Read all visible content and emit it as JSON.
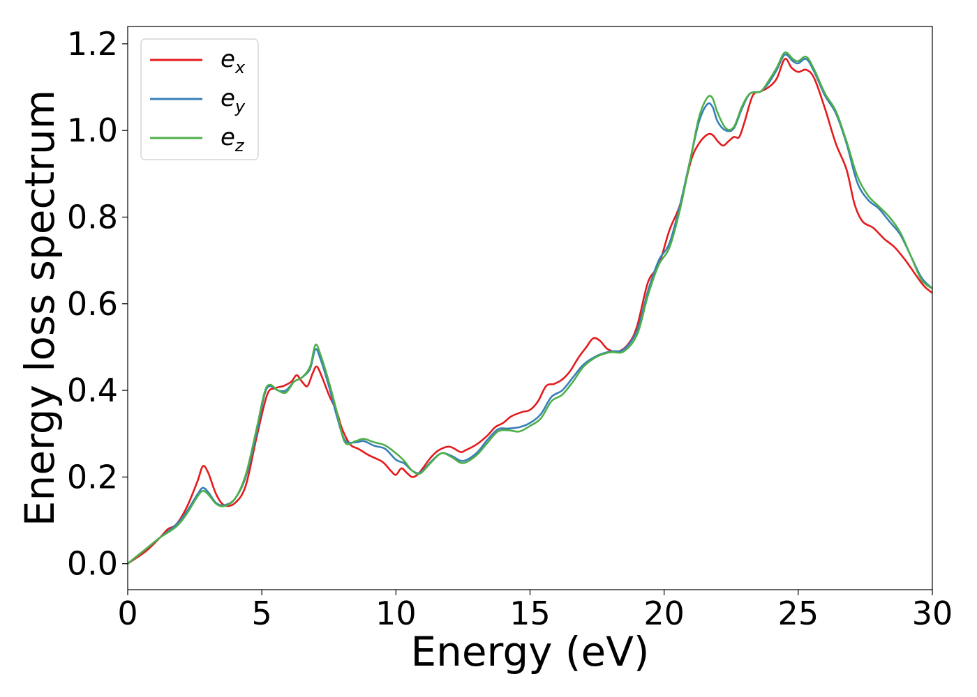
{
  "chart_data": {
    "type": "line",
    "xlabel": "Energy (eV)",
    "ylabel": "Energy loss spectrum",
    "xlim": [
      0,
      30
    ],
    "ylim": [
      -0.06,
      1.24
    ],
    "xticks": [
      "0",
      "5",
      "10",
      "15",
      "20",
      "25",
      "30"
    ],
    "yticks": [
      "0.0",
      "0.2",
      "0.4",
      "0.6",
      "0.8",
      "1.0",
      "1.2"
    ],
    "grid": false,
    "legend_position": "upper-left",
    "series": [
      {
        "name": "e_x",
        "legend_base": "e",
        "legend_sub": "x",
        "color": "#e41a1c",
        "x": [
          0,
          0.7,
          1.2,
          1.5,
          1.8,
          2.2,
          2.6,
          2.8,
          3.0,
          3.3,
          3.6,
          4.0,
          4.4,
          4.8,
          5.2,
          5.5,
          5.8,
          6.1,
          6.3,
          6.5,
          6.7,
          6.9,
          7.05,
          7.25,
          7.5,
          7.8,
          8.0,
          8.3,
          8.6,
          9.0,
          9.5,
          9.8,
          10.0,
          10.2,
          10.4,
          10.6,
          10.8,
          11.0,
          11.3,
          11.6,
          12.0,
          12.4,
          12.6,
          13.0,
          13.4,
          13.7,
          14.0,
          14.3,
          14.7,
          15.0,
          15.3,
          15.6,
          15.9,
          16.2,
          16.5,
          16.8,
          17.1,
          17.35,
          17.6,
          17.9,
          18.3,
          18.7,
          19.0,
          19.4,
          19.8,
          20.2,
          20.6,
          21.0,
          21.3,
          21.6,
          21.8,
          22.0,
          22.2,
          22.4,
          22.6,
          22.8,
          23.0,
          23.3,
          23.6,
          23.9,
          24.2,
          24.5,
          24.75,
          25.0,
          25.3,
          25.6,
          26.0,
          26.4,
          26.8,
          27.1,
          27.4,
          27.8,
          28.2,
          28.6,
          29.0,
          29.4,
          29.7,
          30.0
        ],
        "y": [
          0.0,
          0.03,
          0.06,
          0.08,
          0.09,
          0.13,
          0.19,
          0.225,
          0.21,
          0.16,
          0.135,
          0.14,
          0.18,
          0.29,
          0.39,
          0.405,
          0.41,
          0.42,
          0.435,
          0.42,
          0.41,
          0.44,
          0.455,
          0.43,
          0.39,
          0.35,
          0.31,
          0.275,
          0.265,
          0.25,
          0.235,
          0.215,
          0.205,
          0.22,
          0.21,
          0.2,
          0.205,
          0.22,
          0.245,
          0.262,
          0.27,
          0.258,
          0.262,
          0.275,
          0.295,
          0.315,
          0.325,
          0.34,
          0.35,
          0.355,
          0.375,
          0.41,
          0.415,
          0.425,
          0.445,
          0.475,
          0.5,
          0.52,
          0.515,
          0.495,
          0.49,
          0.51,
          0.55,
          0.65,
          0.69,
          0.77,
          0.83,
          0.93,
          0.97,
          0.99,
          0.99,
          0.975,
          0.965,
          0.975,
          0.985,
          0.985,
          1.02,
          1.08,
          1.09,
          1.1,
          1.12,
          1.165,
          1.145,
          1.135,
          1.14,
          1.12,
          1.05,
          0.97,
          0.91,
          0.83,
          0.79,
          0.775,
          0.75,
          0.73,
          0.7,
          0.665,
          0.64,
          0.625
        ]
      },
      {
        "name": "e_y",
        "legend_base": "e",
        "legend_sub": "y",
        "color": "#377eb8",
        "x": [
          0,
          0.7,
          1.2,
          1.8,
          2.2,
          2.6,
          2.8,
          3.0,
          3.3,
          3.6,
          4.0,
          4.4,
          4.8,
          5.1,
          5.3,
          5.6,
          5.9,
          6.2,
          6.5,
          6.8,
          7.0,
          7.2,
          7.5,
          7.8,
          8.1,
          8.5,
          8.8,
          9.2,
          9.6,
          10.0,
          10.3,
          10.6,
          10.9,
          11.3,
          11.7,
          12.1,
          12.5,
          13.0,
          13.4,
          13.8,
          14.2,
          14.6,
          15.0,
          15.4,
          15.8,
          16.2,
          16.6,
          17.0,
          17.5,
          18.0,
          18.5,
          19.0,
          19.4,
          19.8,
          20.2,
          20.6,
          21.0,
          21.3,
          21.6,
          21.8,
          22.0,
          22.3,
          22.6,
          22.9,
          23.2,
          23.6,
          23.9,
          24.2,
          24.5,
          24.8,
          25.0,
          25.3,
          25.6,
          26.0,
          26.4,
          26.8,
          27.2,
          27.6,
          28.0,
          28.4,
          28.8,
          29.2,
          29.6,
          30.0
        ],
        "y": [
          0.0,
          0.035,
          0.06,
          0.09,
          0.12,
          0.16,
          0.175,
          0.165,
          0.14,
          0.135,
          0.15,
          0.2,
          0.3,
          0.39,
          0.41,
          0.4,
          0.4,
          0.42,
          0.43,
          0.45,
          0.495,
          0.47,
          0.41,
          0.34,
          0.285,
          0.28,
          0.283,
          0.272,
          0.265,
          0.24,
          0.232,
          0.215,
          0.21,
          0.235,
          0.255,
          0.248,
          0.237,
          0.255,
          0.285,
          0.31,
          0.312,
          0.315,
          0.325,
          0.345,
          0.385,
          0.4,
          0.43,
          0.46,
          0.48,
          0.49,
          0.495,
          0.54,
          0.63,
          0.7,
          0.74,
          0.83,
          0.94,
          1.02,
          1.06,
          1.055,
          1.02,
          1.0,
          1.005,
          1.05,
          1.085,
          1.09,
          1.11,
          1.14,
          1.175,
          1.16,
          1.155,
          1.165,
          1.135,
          1.08,
          1.04,
          0.97,
          0.88,
          0.84,
          0.82,
          0.79,
          0.76,
          0.71,
          0.66,
          0.635
        ]
      },
      {
        "name": "e_z",
        "legend_base": "e",
        "legend_sub": "z",
        "color": "#4daf4a",
        "x": [
          0,
          0.7,
          1.2,
          1.8,
          2.2,
          2.6,
          2.8,
          3.0,
          3.3,
          3.6,
          4.0,
          4.4,
          4.8,
          5.1,
          5.3,
          5.6,
          5.9,
          6.2,
          6.5,
          6.8,
          7.0,
          7.2,
          7.5,
          7.8,
          8.1,
          8.5,
          8.8,
          9.2,
          9.6,
          10.0,
          10.3,
          10.6,
          10.9,
          11.3,
          11.7,
          12.1,
          12.5,
          13.0,
          13.4,
          13.8,
          14.2,
          14.6,
          15.0,
          15.4,
          15.8,
          16.2,
          16.6,
          17.0,
          17.5,
          18.0,
          18.5,
          19.0,
          19.4,
          19.8,
          20.2,
          20.6,
          21.0,
          21.3,
          21.6,
          21.8,
          22.0,
          22.3,
          22.6,
          22.9,
          23.2,
          23.6,
          23.9,
          24.2,
          24.5,
          24.8,
          25.0,
          25.3,
          25.6,
          26.0,
          26.4,
          26.8,
          27.2,
          27.6,
          28.0,
          28.4,
          28.8,
          29.2,
          29.6,
          30.0
        ],
        "y": [
          0.0,
          0.035,
          0.06,
          0.085,
          0.115,
          0.155,
          0.168,
          0.16,
          0.138,
          0.133,
          0.15,
          0.205,
          0.31,
          0.395,
          0.413,
          0.4,
          0.395,
          0.42,
          0.43,
          0.455,
          0.505,
          0.48,
          0.42,
          0.35,
          0.28,
          0.283,
          0.288,
          0.28,
          0.273,
          0.255,
          0.238,
          0.215,
          0.208,
          0.233,
          0.255,
          0.245,
          0.232,
          0.25,
          0.278,
          0.305,
          0.308,
          0.305,
          0.318,
          0.335,
          0.375,
          0.39,
          0.42,
          0.455,
          0.478,
          0.488,
          0.49,
          0.53,
          0.62,
          0.69,
          0.73,
          0.82,
          0.94,
          1.03,
          1.075,
          1.075,
          1.04,
          1.005,
          1.008,
          1.055,
          1.085,
          1.09,
          1.115,
          1.145,
          1.18,
          1.165,
          1.16,
          1.17,
          1.14,
          1.085,
          1.045,
          0.975,
          0.895,
          0.85,
          0.825,
          0.8,
          0.765,
          0.71,
          0.655,
          0.635
        ]
      }
    ]
  }
}
